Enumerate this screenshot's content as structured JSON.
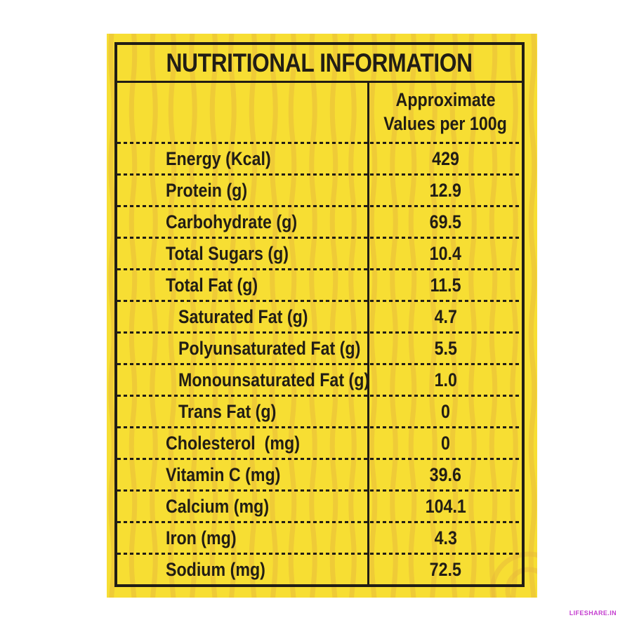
{
  "page": {
    "background_color": "#ffffff",
    "watermark_text": "LIFESHARE.IN",
    "watermark_color": "#C43ECF"
  },
  "nutrition_label": {
    "title": "NUTRITIONAL INFORMATION",
    "value_column_header_line1": "Approximate",
    "value_column_header_line2": "Values per 100g",
    "colors": {
      "label_background": "#F7DE33",
      "stripe_pattern": "#E8B83B",
      "ink": "#211D15"
    },
    "rows": [
      {
        "name": "Energy (Kcal)",
        "value": "429",
        "indent": false
      },
      {
        "name": "Protein (g)",
        "value": "12.9",
        "indent": false
      },
      {
        "name": "Carbohydrate (g)",
        "value": "69.5",
        "indent": false
      },
      {
        "name": "Total Sugars (g)",
        "value": "10.4",
        "indent": false
      },
      {
        "name": "Total Fat (g)",
        "value": "11.5",
        "indent": false
      },
      {
        "name": "Saturated Fat (g)",
        "value": "4.7",
        "indent": true
      },
      {
        "name": "Polyunsaturated Fat (g)",
        "value": "5.5",
        "indent": true
      },
      {
        "name": "Monounsaturated Fat (g)",
        "value": "1.0",
        "indent": true
      },
      {
        "name": "Trans Fat (g)",
        "value": "0",
        "indent": true
      },
      {
        "name": "Cholesterol  (mg)",
        "value": "0",
        "indent": false
      },
      {
        "name": "Vitamin C (mg)",
        "value": "39.6",
        "indent": false
      },
      {
        "name": "Calcium (mg)",
        "value": "104.1",
        "indent": false
      },
      {
        "name": "Iron (mg)",
        "value": "4.3",
        "indent": false
      },
      {
        "name": "Sodium (mg)",
        "value": "72.5",
        "indent": false
      }
    ]
  }
}
